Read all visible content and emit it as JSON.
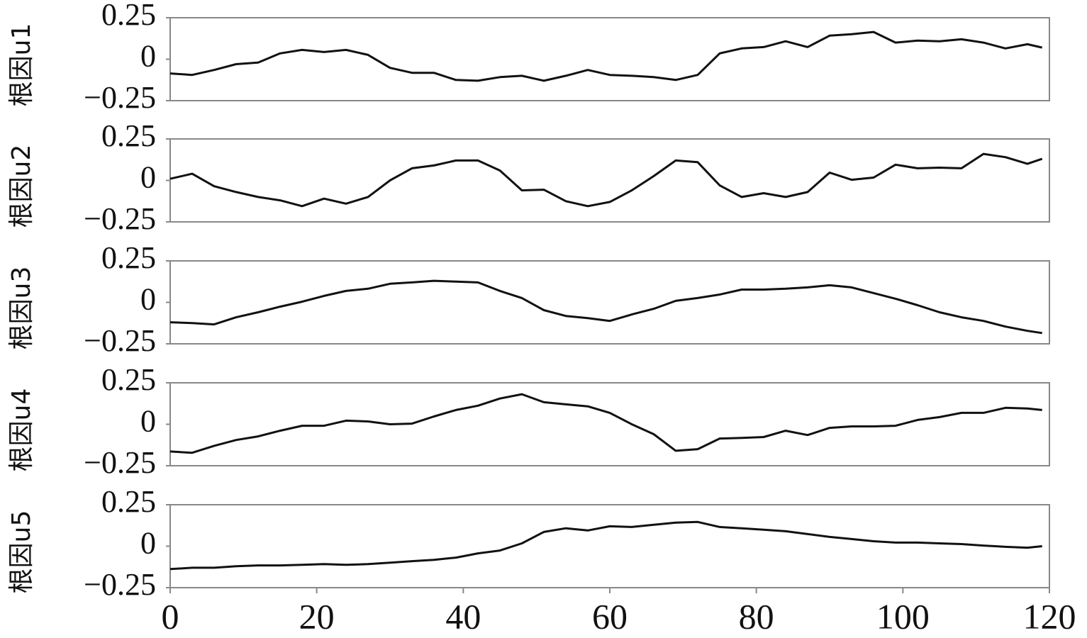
{
  "chart_data": [
    {
      "type": "line",
      "ylabel": "根因u1",
      "xlim": [
        0,
        120
      ],
      "ylim": [
        -0.25,
        0.25
      ],
      "yticks": [
        0.25,
        0,
        {
          "value": -0.25,
          "label": "−0.25"
        }
      ],
      "x": [
        0,
        3,
        6,
        9,
        12,
        15,
        18,
        21,
        24,
        27,
        30,
        33,
        36,
        39,
        42,
        45,
        48,
        51,
        54,
        57,
        60,
        63,
        66,
        69,
        72,
        75,
        78,
        81,
        84,
        87,
        90,
        93,
        96,
        99,
        102,
        105,
        108,
        111,
        114,
        117,
        119
      ],
      "series": [
        {
          "color": "#111",
          "values": [
            -0.086,
            -0.095,
            -0.065,
            -0.03,
            -0.02,
            0.035,
            0.056,
            0.043,
            0.056,
            0.026,
            -0.052,
            -0.082,
            -0.082,
            -0.125,
            -0.13,
            -0.108,
            -0.1,
            -0.13,
            -0.1,
            -0.065,
            -0.095,
            -0.1,
            -0.108,
            -0.125,
            -0.095,
            0.035,
            0.065,
            0.073,
            0.108,
            0.073,
            0.142,
            0.151,
            0.164,
            0.1,
            0.112,
            0.108,
            0.12,
            0.1,
            0.065,
            0.09,
            0.07
          ]
        }
      ]
    },
    {
      "type": "line",
      "ylabel": "根因u2",
      "xlim": [
        0,
        120
      ],
      "ylim": [
        -0.25,
        0.25
      ],
      "yticks": [
        0.25,
        0,
        {
          "value": -0.25,
          "label": "−0.25"
        }
      ],
      "x": [
        0,
        3,
        6,
        9,
        12,
        15,
        18,
        21,
        24,
        27,
        30,
        33,
        36,
        39,
        42,
        45,
        48,
        51,
        54,
        57,
        60,
        63,
        66,
        69,
        72,
        75,
        78,
        81,
        84,
        87,
        90,
        93,
        96,
        99,
        102,
        105,
        108,
        111,
        114,
        117,
        119
      ],
      "series": [
        {
          "color": "#111",
          "values": [
            0.01,
            0.04,
            -0.035,
            -0.07,
            -0.1,
            -0.12,
            -0.155,
            -0.11,
            -0.14,
            -0.1,
            0,
            0.073,
            0.09,
            0.12,
            0.12,
            0.06,
            -0.06,
            -0.056,
            -0.125,
            -0.155,
            -0.13,
            -0.06,
            0.026,
            0.12,
            0.11,
            -0.03,
            -0.1,
            -0.077,
            -0.1,
            -0.07,
            0.047,
            0.004,
            0.017,
            0.095,
            0.073,
            0.077,
            0.073,
            0.16,
            0.14,
            0.1,
            0.13
          ]
        }
      ]
    },
    {
      "type": "line",
      "ylabel": "根因u3",
      "xlim": [
        0,
        120
      ],
      "ylim": [
        -0.25,
        0.25
      ],
      "yticks": [
        0.25,
        0,
        {
          "value": -0.25,
          "label": "−0.25"
        }
      ],
      "x": [
        0,
        3,
        6,
        9,
        12,
        15,
        18,
        21,
        24,
        27,
        30,
        33,
        36,
        39,
        42,
        45,
        48,
        51,
        54,
        57,
        60,
        63,
        66,
        69,
        72,
        75,
        78,
        81,
        84,
        87,
        90,
        93,
        96,
        99,
        102,
        105,
        108,
        111,
        114,
        117,
        119
      ],
      "series": [
        {
          "color": "#111",
          "values": [
            -0.12,
            -0.125,
            -0.133,
            -0.09,
            -0.06,
            -0.026,
            0.004,
            0.039,
            0.069,
            0.082,
            0.112,
            0.12,
            0.13,
            0.125,
            0.12,
            0.069,
            0.026,
            -0.047,
            -0.082,
            -0.095,
            -0.112,
            -0.073,
            -0.039,
            0.009,
            0.026,
            0.047,
            0.077,
            0.077,
            0.082,
            0.09,
            0.103,
            0.09,
            0.056,
            0.022,
            -0.017,
            -0.06,
            -0.09,
            -0.112,
            -0.146,
            -0.172,
            -0.185
          ]
        }
      ]
    },
    {
      "type": "line",
      "ylabel": "根因u4",
      "xlim": [
        0,
        120
      ],
      "ylim": [
        -0.25,
        0.25
      ],
      "yticks": [
        0.25,
        0,
        {
          "value": -0.25,
          "label": "−0.25"
        }
      ],
      "x": [
        0,
        3,
        6,
        9,
        12,
        15,
        18,
        21,
        24,
        27,
        30,
        33,
        36,
        39,
        42,
        45,
        48,
        51,
        54,
        57,
        60,
        63,
        66,
        69,
        72,
        75,
        78,
        81,
        84,
        87,
        90,
        93,
        96,
        99,
        102,
        105,
        108,
        111,
        114,
        117,
        119
      ],
      "series": [
        {
          "color": "#111",
          "values": [
            -0.164,
            -0.172,
            -0.13,
            -0.095,
            -0.073,
            -0.039,
            -0.009,
            -0.009,
            0.022,
            0.017,
            0,
            0.004,
            0.047,
            0.086,
            0.112,
            0.155,
            0.181,
            0.133,
            0.12,
            0.108,
            0.069,
            0,
            -0.06,
            -0.16,
            -0.15,
            -0.086,
            -0.082,
            -0.077,
            -0.039,
            -0.065,
            -0.022,
            -0.013,
            -0.013,
            -0.009,
            0.026,
            0.043,
            0.069,
            0.069,
            0.099,
            0.095,
            0.086
          ]
        }
      ]
    },
    {
      "type": "line",
      "ylabel": "根因u5",
      "xlim": [
        0,
        120
      ],
      "ylim": [
        -0.25,
        0.25
      ],
      "yticks": [
        0.25,
        0,
        {
          "value": -0.25,
          "label": "−0.25"
        }
      ],
      "xticks": [
        0,
        20,
        40,
        60,
        80,
        100,
        120
      ],
      "x": [
        0,
        3,
        6,
        9,
        12,
        15,
        18,
        21,
        24,
        27,
        30,
        33,
        36,
        39,
        42,
        45,
        48,
        51,
        54,
        57,
        60,
        63,
        66,
        69,
        72,
        75,
        78,
        81,
        84,
        87,
        90,
        93,
        96,
        99,
        102,
        105,
        108,
        111,
        114,
        117,
        119
      ],
      "series": [
        {
          "color": "#111",
          "values": [
            -0.138,
            -0.13,
            -0.13,
            -0.121,
            -0.116,
            -0.116,
            -0.112,
            -0.108,
            -0.112,
            -0.108,
            -0.099,
            -0.09,
            -0.082,
            -0.069,
            -0.043,
            -0.026,
            0.017,
            0.086,
            0.108,
            0.095,
            0.12,
            0.116,
            0.129,
            0.142,
            0.146,
            0.116,
            0.108,
            0.099,
            0.09,
            0.073,
            0.056,
            0.043,
            0.03,
            0.022,
            0.022,
            0.017,
            0.013,
            0.004,
            -0.004,
            -0.009,
            0
          ]
        }
      ]
    }
  ]
}
